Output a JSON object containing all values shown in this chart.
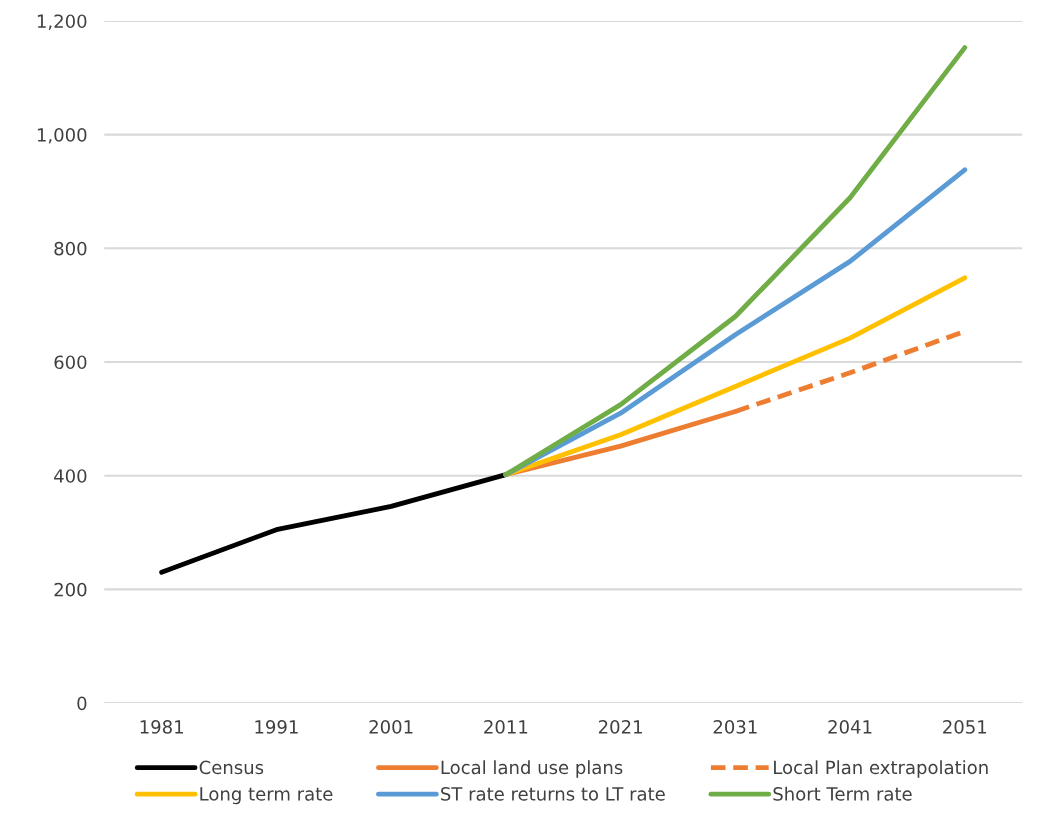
{
  "chart_data": {
    "type": "line",
    "categories": [
      "1981",
      "1991",
      "2001",
      "2011",
      "2021",
      "2031",
      "2041",
      "2051"
    ],
    "ylim": [
      0,
      1200
    ],
    "yticks": [
      0,
      200,
      400,
      600,
      800,
      {
        "value": 1000,
        "label": "1,000"
      },
      {
        "value": 1200,
        "label": "1,200"
      }
    ],
    "grid": "y",
    "legend": "bottom",
    "line_style": "solid",
    "series": [
      {
        "name": "Census",
        "color": "#000000",
        "values": [
          230,
          305,
          346,
          402,
          null,
          null,
          null,
          null
        ]
      },
      {
        "name": "Local land use plans",
        "color": "#ed7d31",
        "values": [
          null,
          null,
          null,
          402,
          452,
          513,
          null,
          null
        ]
      },
      {
        "name": "Local Plan extrapolation",
        "color": "#ed7d31",
        "line_style": "dashed",
        "values": [
          null,
          null,
          null,
          null,
          null,
          513,
          581,
          654
        ]
      },
      {
        "name": "Long term rate",
        "color": "#ffc000",
        "values": [
          null,
          null,
          null,
          402,
          472,
          557,
          642,
          748
        ]
      },
      {
        "name": "ST rate returns to LT rate",
        "color": "#5b9bd5",
        "values": [
          null,
          null,
          null,
          402,
          510,
          648,
          777,
          938
        ]
      },
      {
        "name": "Short Term rate",
        "color": "#70ad47",
        "values": [
          null,
          null,
          null,
          402,
          525,
          680,
          889,
          1153
        ]
      }
    ]
  }
}
